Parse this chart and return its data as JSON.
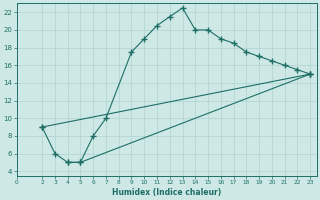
{
  "xlabel": "Humidex (Indice chaleur)",
  "bg_color": "#cde8e5",
  "line_color": "#1e6e66",
  "grid_color": "#aed4d0",
  "l1x": [
    2,
    3,
    4,
    5,
    6,
    7,
    9,
    10,
    11,
    12,
    13,
    14,
    15,
    16,
    17,
    18,
    19,
    20,
    21,
    22,
    23
  ],
  "l1y": [
    9,
    6,
    5,
    5,
    8,
    10,
    17.5,
    19,
    20.5,
    21.5,
    22.5,
    20,
    20,
    19,
    18.5,
    17.5,
    17,
    16.5,
    16,
    15.5,
    15
  ],
  "l2x": [
    4,
    5,
    23
  ],
  "l2y": [
    5,
    5,
    15
  ],
  "l3x": [
    2,
    23
  ],
  "l3y": [
    9,
    15
  ],
  "xlim": [
    0,
    23.5
  ],
  "ylim": [
    3.5,
    23
  ],
  "xticks": [
    0,
    2,
    3,
    4,
    5,
    6,
    7,
    8,
    9,
    10,
    11,
    12,
    13,
    14,
    15,
    16,
    17,
    18,
    19,
    20,
    21,
    22,
    23
  ],
  "yticks": [
    4,
    6,
    8,
    10,
    12,
    14,
    16,
    18,
    20,
    22
  ]
}
